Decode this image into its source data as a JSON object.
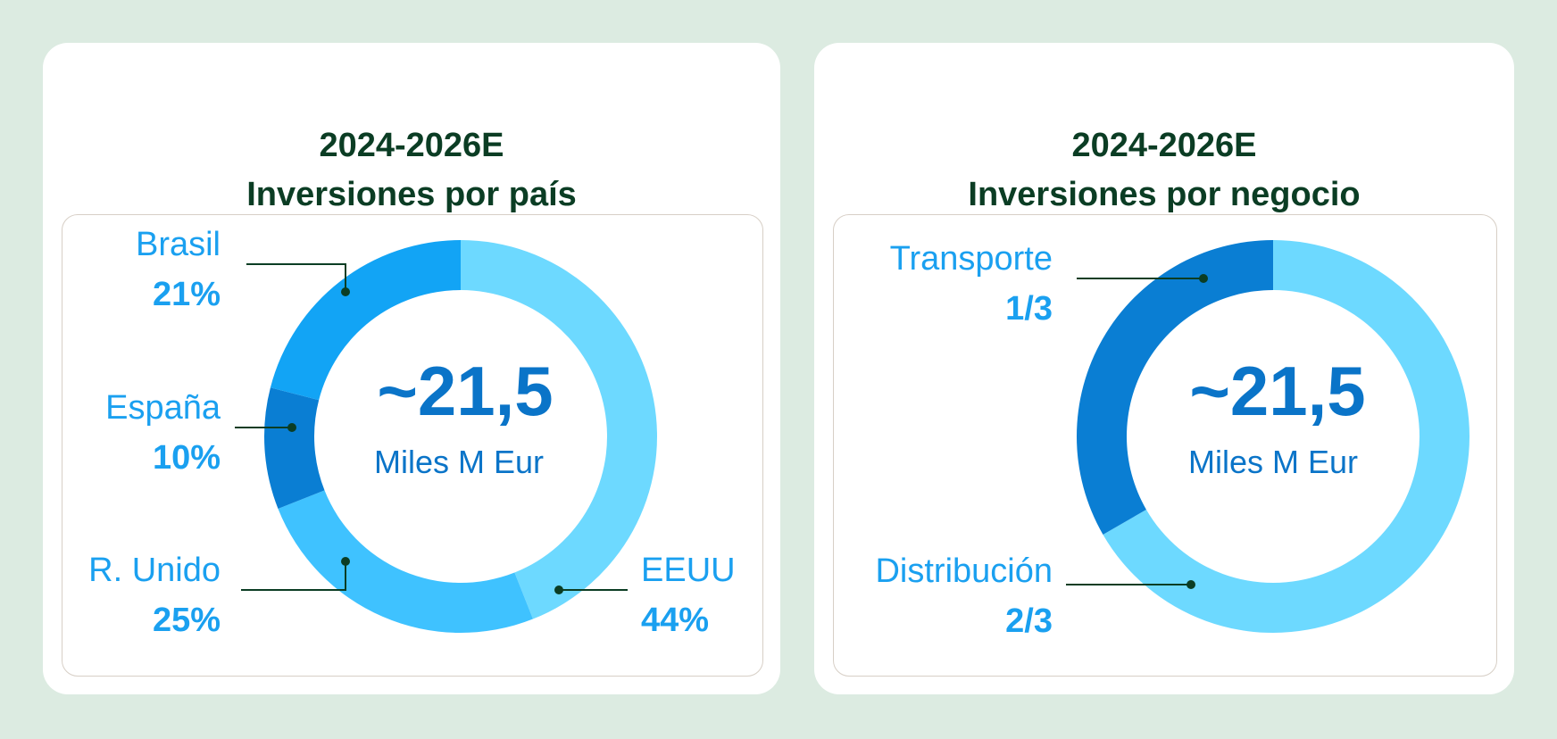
{
  "palette": {
    "page_bg": "#dcebe1",
    "card_bg": "#ffffff",
    "title": "#0b3d24",
    "label": "#1aa0f0",
    "center_text": "#0a74c8",
    "leader": "#0b3d24"
  },
  "chart_data": [
    {
      "type": "pie",
      "donut": true,
      "title_line1": "2024-2026E",
      "title_line2": "Inversiones por país",
      "center_value": "~21,5",
      "center_unit": "Miles M Eur",
      "segments": [
        {
          "name": "EEUU",
          "value": 44,
          "label": "44%",
          "color": "#6dd9ff"
        },
        {
          "name": "R. Unido",
          "value": 25,
          "label": "25%",
          "color": "#3fc2ff"
        },
        {
          "name": "España",
          "value": 10,
          "label": "10%",
          "color": "#0a7ed3"
        },
        {
          "name": "Brasil",
          "value": 21,
          "label": "21%",
          "color": "#12a4f5"
        }
      ]
    },
    {
      "type": "pie",
      "donut": true,
      "title_line1": "2024-2026E",
      "title_line2": "Inversiones por negocio",
      "center_value": "~21,5",
      "center_unit": "Miles M Eur",
      "segments": [
        {
          "name": "Distribución",
          "value": 66.67,
          "label": "2/3",
          "color": "#6dd9ff"
        },
        {
          "name": "Transporte",
          "value": 33.33,
          "label": "1/3",
          "color": "#0a7ed3"
        }
      ]
    }
  ]
}
